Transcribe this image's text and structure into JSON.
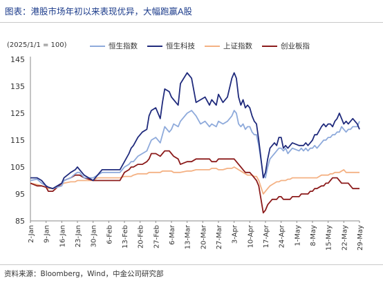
{
  "figure": {
    "title": "图表：港股市场年初以来表现优异，大幅跑赢A股",
    "source": "资料来源：Bloomberg，Wind，中金公司研究部"
  },
  "chart_data": {
    "type": "line",
    "title": "",
    "ylabel": "(2025/1/1 = 100)",
    "xlabel": "",
    "ylim": [
      85,
      145
    ],
    "yticks": [
      85,
      95,
      105,
      115,
      125,
      135,
      145
    ],
    "grid": false,
    "legend_position": "top",
    "xticks": [
      "2-Jan",
      "9-Jan",
      "16-Jan",
      "23-Jan",
      "30-Jan",
      "6-Feb",
      "13-Feb",
      "20-Feb",
      "27-Feb",
      "6-Mar",
      "13-Mar",
      "20-Mar",
      "27-Mar",
      "3-Apr",
      "10-Apr",
      "17-Apr",
      "24-Apr",
      "1-May",
      "8-May",
      "15-May",
      "22-May",
      "29-May"
    ],
    "x_range_days": [
      0,
      147
    ],
    "series": [
      {
        "name": "恒生指数",
        "color": "#8eaadb",
        "x": [
          0,
          3,
          5,
          7,
          8,
          10,
          14,
          15,
          18,
          20,
          21,
          22,
          24,
          28,
          30,
          32,
          34,
          36,
          38,
          40,
          42,
          44,
          45,
          46,
          48,
          50,
          52,
          53,
          54,
          56,
          58,
          59,
          60,
          62,
          63,
          64,
          66,
          67,
          70,
          72,
          74,
          76,
          78,
          80,
          81,
          83,
          84,
          86,
          88,
          90,
          91,
          92,
          93,
          94,
          95,
          96,
          97,
          98,
          99,
          100,
          101,
          102,
          104,
          105,
          106,
          107,
          108,
          109,
          110,
          111,
          112,
          113,
          114,
          115,
          116,
          117,
          120,
          121,
          122,
          123,
          124,
          125,
          126,
          127,
          128,
          130,
          131,
          132,
          133,
          134,
          135,
          136,
          137,
          138,
          139,
          140,
          141,
          142,
          143,
          144,
          145,
          146,
          147
        ],
        "y": [
          100,
          100.5,
          99,
          98,
          97.5,
          97,
          98,
          100,
          101,
          102.5,
          103,
          103,
          101,
          101,
          102,
          103,
          103,
          103,
          103,
          103,
          105,
          106,
          107,
          107,
          109,
          110,
          111,
          113,
          115,
          116,
          114,
          117,
          120,
          118,
          119,
          121,
          120,
          122,
          125,
          126,
          124,
          121,
          122,
          120,
          121,
          120,
          122,
          121,
          122,
          124,
          126,
          125,
          121,
          120,
          121,
          119,
          120,
          120,
          118,
          117,
          117,
          113,
          102,
          101,
          105,
          108,
          109,
          110,
          111,
          112,
          112,
          111,
          112,
          110,
          111,
          112,
          111,
          112,
          111,
          112,
          111,
          112,
          112,
          113,
          112,
          114,
          115,
          115,
          116,
          116,
          117,
          117,
          118,
          118,
          120,
          119,
          118,
          119,
          119,
          120,
          120,
          120,
          122
        ],
        "note": "values estimated"
      },
      {
        "name": "恒生科技",
        "color": "#1f2a7c",
        "x": [
          0,
          3,
          5,
          7,
          8,
          10,
          14,
          15,
          18,
          20,
          21,
          22,
          24,
          28,
          30,
          32,
          34,
          36,
          38,
          40,
          42,
          44,
          45,
          46,
          48,
          50,
          52,
          53,
          54,
          56,
          58,
          59,
          60,
          62,
          63,
          64,
          66,
          67,
          70,
          72,
          74,
          76,
          78,
          80,
          81,
          83,
          84,
          86,
          88,
          90,
          91,
          92,
          93,
          94,
          95,
          96,
          97,
          98,
          99,
          100,
          101,
          102,
          104,
          105,
          106,
          107,
          108,
          109,
          110,
          111,
          112,
          113,
          114,
          115,
          116,
          117,
          120,
          121,
          122,
          123,
          124,
          125,
          126,
          127,
          128,
          130,
          131,
          132,
          133,
          134,
          135,
          136,
          137,
          138,
          139,
          140,
          141,
          142,
          143,
          144,
          145,
          146,
          147
        ],
        "y": [
          101,
          101,
          100,
          98,
          97.5,
          97,
          99,
          101,
          103,
          104,
          105,
          104,
          102,
          100,
          102,
          104,
          104,
          104,
          104,
          104,
          107,
          110,
          112,
          113,
          116,
          118,
          119,
          124,
          126,
          127,
          123,
          129,
          134,
          133,
          131,
          130,
          128,
          136,
          140,
          138,
          129,
          130,
          131,
          128,
          130,
          128,
          132,
          129,
          131,
          138,
          140,
          138,
          131,
          128,
          130,
          127,
          128,
          127,
          124,
          122,
          121,
          115,
          101,
          103,
          108,
          112,
          113,
          114,
          113,
          116,
          116,
          112,
          113,
          112,
          113,
          114,
          113,
          113,
          113,
          114,
          113,
          114,
          115,
          117,
          117,
          120,
          121,
          120,
          121,
          121,
          120,
          122,
          123,
          125,
          123,
          121,
          122,
          121,
          122,
          123,
          122,
          121,
          119
        ],
        "note": "values estimated"
      },
      {
        "name": "上证指数",
        "color": "#f4b183",
        "x": [
          0,
          3,
          5,
          7,
          8,
          10,
          14,
          15,
          18,
          20,
          21,
          22,
          24,
          28,
          30,
          32,
          34,
          36,
          38,
          40,
          42,
          44,
          45,
          46,
          48,
          50,
          52,
          53,
          54,
          56,
          58,
          59,
          60,
          62,
          63,
          64,
          66,
          67,
          70,
          72,
          74,
          76,
          78,
          80,
          81,
          83,
          84,
          86,
          88,
          90,
          91,
          92,
          93,
          94,
          95,
          96,
          97,
          98,
          99,
          100,
          101,
          102,
          104,
          105,
          106,
          107,
          108,
          109,
          110,
          111,
          112,
          113,
          114,
          115,
          116,
          117,
          120,
          121,
          122,
          123,
          124,
          125,
          126,
          127,
          128,
          130,
          131,
          132,
          133,
          134,
          135,
          136,
          137,
          138,
          139,
          140,
          141,
          142,
          143,
          144,
          145,
          146,
          147
        ],
        "y": [
          99,
          98.5,
          98,
          97.5,
          97,
          97,
          98.5,
          99,
          99.5,
          99.5,
          100,
          100,
          100,
          100,
          101,
          101,
          101,
          101,
          101,
          101,
          101.5,
          101.5,
          101.5,
          102,
          102.5,
          102.5,
          102.5,
          103,
          103,
          103,
          103,
          103.5,
          103.5,
          103.5,
          103.5,
          103,
          103,
          103,
          103.5,
          103.5,
          104,
          104,
          104,
          104,
          104.5,
          104.5,
          104,
          104,
          104.5,
          104.5,
          105,
          104.5,
          104,
          103.5,
          103,
          102.5,
          102,
          102,
          102,
          101.5,
          101.5,
          100,
          95,
          96,
          97,
          98,
          98.5,
          99,
          99.5,
          99.5,
          100,
          100,
          100,
          100.5,
          100.5,
          101,
          101,
          101,
          101,
          101,
          101,
          101,
          101,
          101,
          101,
          102,
          102,
          102,
          102,
          102.5,
          102.5,
          103,
          103,
          103,
          103.5,
          104,
          103,
          103,
          103,
          103,
          103,
          103,
          103
        ],
        "note": "values estimated"
      },
      {
        "name": "创业板指",
        "color": "#8b1a1a",
        "x": [
          0,
          3,
          5,
          7,
          8,
          10,
          14,
          15,
          18,
          20,
          21,
          22,
          24,
          28,
          30,
          32,
          34,
          36,
          38,
          40,
          42,
          44,
          45,
          46,
          48,
          50,
          52,
          53,
          54,
          56,
          58,
          59,
          60,
          62,
          63,
          64,
          66,
          67,
          70,
          72,
          74,
          76,
          78,
          80,
          81,
          83,
          84,
          86,
          88,
          90,
          91,
          92,
          93,
          94,
          95,
          96,
          97,
          98,
          99,
          100,
          101,
          102,
          104,
          105,
          106,
          107,
          108,
          109,
          110,
          111,
          112,
          113,
          114,
          115,
          116,
          117,
          120,
          121,
          122,
          123,
          124,
          125,
          126,
          127,
          128,
          130,
          131,
          132,
          133,
          134,
          135,
          136,
          137,
          138,
          139,
          140,
          141,
          142,
          143,
          144,
          145,
          146,
          147
        ],
        "y": [
          99,
          98,
          98,
          97.5,
          96,
          96,
          99,
          100,
          101,
          102,
          102,
          102,
          101,
          100,
          100,
          100,
          100,
          100,
          100,
          100,
          103,
          104,
          105,
          105,
          106,
          106,
          107,
          108,
          110,
          110,
          109,
          110,
          111,
          111,
          110,
          109,
          108,
          106,
          107,
          107,
          108,
          108,
          108,
          108,
          107,
          107,
          108,
          108,
          108,
          108,
          108,
          107,
          106,
          105,
          104,
          103,
          103,
          103,
          102,
          101,
          100,
          98,
          88,
          89,
          91,
          92,
          93,
          93,
          93,
          94,
          94,
          93,
          93,
          93,
          93,
          94,
          94,
          95,
          95,
          95,
          95,
          96,
          96,
          97,
          97,
          98,
          98,
          99,
          99,
          100,
          101,
          101,
          101,
          100,
          99,
          99,
          99,
          99,
          98,
          97,
          97,
          97,
          97
        ],
        "note": "values estimated"
      }
    ]
  }
}
